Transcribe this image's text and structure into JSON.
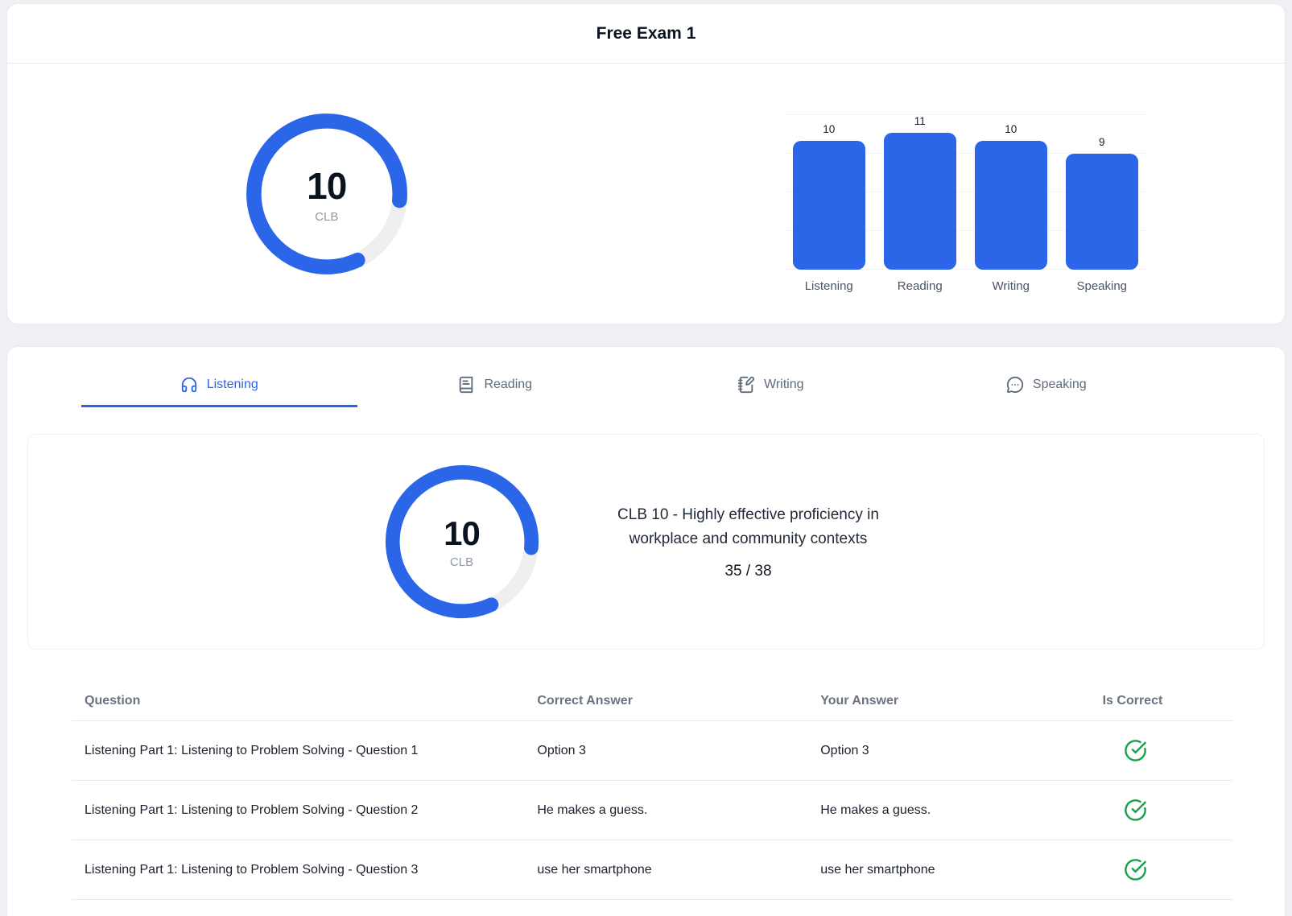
{
  "app": {
    "title": "Free Exam 1"
  },
  "colors": {
    "primary": "#2b66e9",
    "gauge_track": "#efeff2",
    "success_green": "#17a24b"
  },
  "overview": {
    "gauge": {
      "value": "10",
      "label": "CLB",
      "score": 10,
      "max": 12
    },
    "chart_data": {
      "type": "bar",
      "categories": [
        "Listening",
        "Reading",
        "Writing",
        "Speaking"
      ],
      "values": [
        10,
        11,
        10,
        9
      ],
      "value_labels": [
        "10",
        "11",
        "10",
        "9"
      ],
      "title": "",
      "xlabel": "",
      "ylabel": "",
      "ylim": [
        0,
        12
      ],
      "gridlines": [
        0,
        3,
        6,
        9,
        12
      ],
      "grid": "horizontal-light",
      "legend": "none",
      "bar_color": "#2b66e9"
    }
  },
  "tabs": [
    {
      "label": "Listening",
      "icon": "headphones-icon",
      "active": true
    },
    {
      "label": "Reading",
      "icon": "book-icon",
      "active": false
    },
    {
      "label": "Writing",
      "icon": "notebook-pen-icon",
      "active": false
    },
    {
      "label": "Speaking",
      "icon": "speech-bubble-icon",
      "active": false
    }
  ],
  "section": {
    "gauge": {
      "value": "10",
      "label": "CLB",
      "score": 10,
      "max": 12
    },
    "description": "CLB 10 - Highly effective proficiency in workplace and community contexts",
    "score_fraction": "35 / 38"
  },
  "results_table": {
    "headers": {
      "question": "Question",
      "correct": "Correct Answer",
      "your": "Your Answer",
      "is_correct": "Is Correct"
    },
    "rows": [
      {
        "question": "Listening Part 1: Listening to Problem Solving - Question 1",
        "correct_answer": "Option 3",
        "your_answer": "Option 3",
        "is_correct": true
      },
      {
        "question": "Listening Part 1: Listening to Problem Solving - Question 2",
        "correct_answer": "He makes a guess.",
        "your_answer": "He makes a guess.",
        "is_correct": true
      },
      {
        "question": "Listening Part 1: Listening to Problem Solving - Question 3",
        "correct_answer": "use her smartphone",
        "your_answer": "use her smartphone",
        "is_correct": true
      }
    ]
  }
}
